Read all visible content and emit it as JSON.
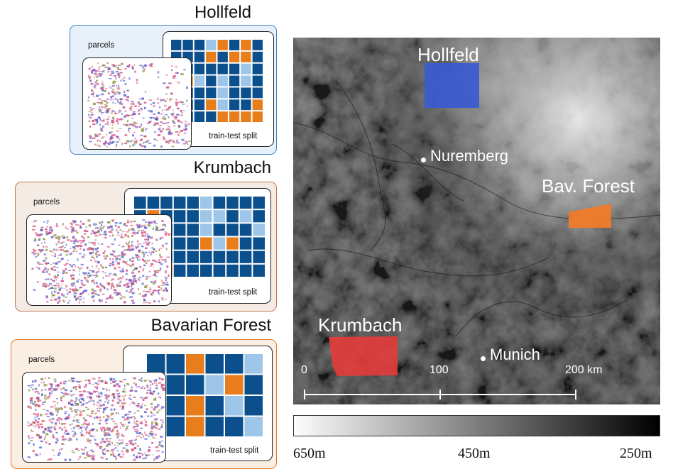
{
  "panels": [
    {
      "id": "hollfeld",
      "title": "Hollfeld",
      "parcels_label": "parcels",
      "split_label": "train-test split",
      "panel_bg": "#e8f1fa",
      "panel_border": "#3f86c8",
      "grid_rows": 7,
      "grid_cols": 8,
      "grid_pattern": [
        "DDDLODOD",
        "DDDODOOD",
        "DDDDDDLD",
        "DOLDLDLD",
        "DDDDLDDD",
        "DDDOLDDO",
        "DDDDOOOO"
      ]
    },
    {
      "id": "krumbach",
      "title": "Krumbach",
      "parcels_label": "parcels",
      "split_label": "train-test split",
      "panel_bg": "#f5ebe5",
      "panel_border": "#c07a4c",
      "grid_rows": 6,
      "grid_cols": 10,
      "grid_pattern": [
        "DDDDDLDDDD",
        "DODDDLLDLD",
        "DDDDDLDDDL",
        "DDDDDOLODD",
        "DDDDDDDDDD",
        "DDODDDDDDD"
      ]
    },
    {
      "id": "bavarian-forest",
      "title": "Bavarian Forest",
      "parcels_label": "parcels",
      "split_label": "train-test split",
      "panel_bg": "#fbeee3",
      "panel_border": "#e07b2a",
      "grid_rows": 4,
      "grid_cols": 6,
      "grid_pattern": [
        "DDODDL",
        "DDDLOD",
        "DDODLD",
        "DDODDL"
      ]
    }
  ],
  "colors": {
    "dark_blue": "#0b4f8c",
    "light_blue": "#9dc6e8",
    "orange": "#e87d1c",
    "hollfeld_area": "#3a5bd0",
    "krumbach_area": "#e43c3c",
    "bavforest_area": "#f07a2a"
  },
  "map": {
    "areas": [
      {
        "name": "Hollfeld",
        "color": "#3a5bd0"
      },
      {
        "name": "Bav. Forest",
        "color": "#f07a2a"
      },
      {
        "name": "Krumbach",
        "color": "#e43c3c"
      }
    ],
    "cities": [
      "Nuremberg",
      "Munich"
    ],
    "scalebar": {
      "ticks": [
        "0",
        "100",
        "200 km"
      ]
    }
  },
  "elevation_legend": {
    "ticks": [
      "650m",
      "450m",
      "250m"
    ]
  }
}
